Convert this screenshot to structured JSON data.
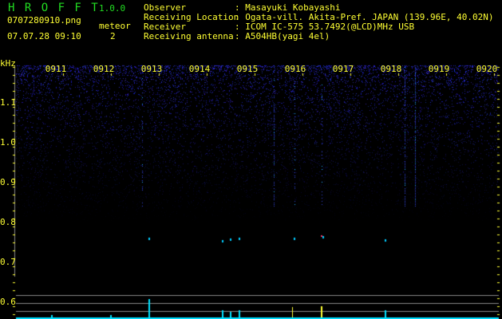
{
  "header": {
    "app_name": "H R O F F T",
    "version": "1.0.0",
    "filename": "0707280910.png",
    "datetime": "07.07.28 09:10",
    "meteor_label": "meteor",
    "meteor_count": "2",
    "info": [
      {
        "label": "Observer",
        "value": ": Masayuki Kobayashi"
      },
      {
        "label": "Receiving Location",
        "value": ": Ogata-vill. Akita-Pref. JAPAN (139.96E, 40.02N)"
      },
      {
        "label": "Receiver",
        "value": ": ICOM IC-575 53.7492(@LCD)MHz USB"
      },
      {
        "label": "Receiving antenna",
        "value": ": A504HB(yagi 4el)"
      }
    ]
  },
  "colors": {
    "text": "#ffff33",
    "title": "#22dd22",
    "signal": "#2233cc",
    "strong": "#00ffff",
    "grid": "#888888"
  },
  "chart_data": {
    "type": "heatmap",
    "ylabel": "kHz",
    "y_ticks": [
      "1.1",
      "1.0",
      "0.9",
      "0.8",
      "0.7",
      "0.6"
    ],
    "x_ticks": [
      "0911",
      "0912",
      "0913",
      "0914",
      "0915",
      "0916",
      "0917",
      "0918",
      "0919",
      "0920"
    ],
    "ylim": [
      0.57,
      1.2
    ]
  }
}
